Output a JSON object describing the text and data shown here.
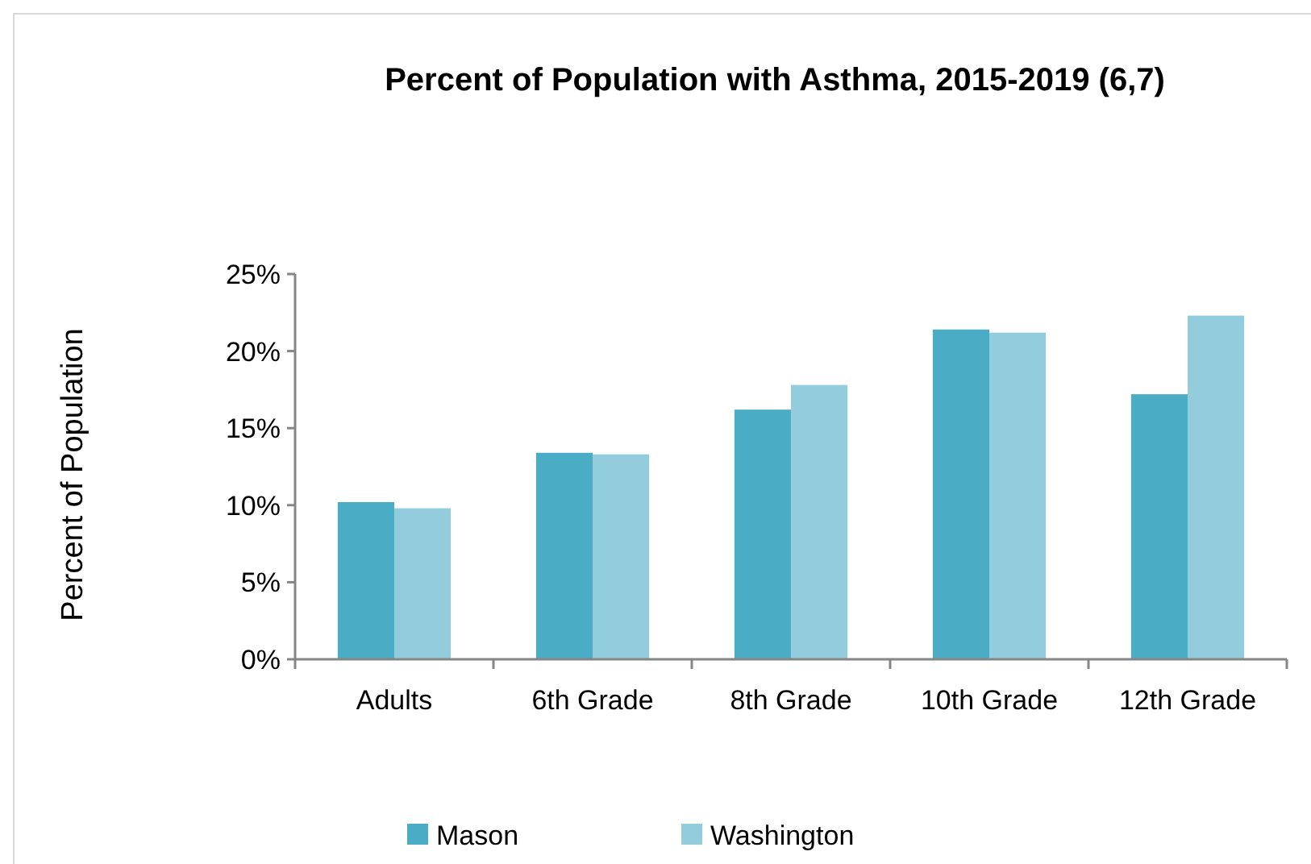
{
  "chart_data": {
    "type": "bar",
    "title": "Percent of Population with Asthma, 2015-2019 (6,7)",
    "ylabel": "Percent of Population",
    "categories": [
      "Adults",
      "6th Grade",
      "8th Grade",
      "10th Grade",
      "12th Grade"
    ],
    "series": [
      {
        "name": "Mason",
        "color": "#4bacc6",
        "values": [
          10.2,
          13.4,
          16.2,
          21.4,
          17.2
        ]
      },
      {
        "name": "Washington",
        "color": "#93cddd",
        "values": [
          9.8,
          13.3,
          17.8,
          21.2,
          22.3
        ]
      }
    ],
    "ylim": [
      0,
      25
    ],
    "yticks": [
      {
        "value": 0,
        "label": "0%"
      },
      {
        "value": 5,
        "label": "5%"
      },
      {
        "value": 10,
        "label": "10%"
      },
      {
        "value": 15,
        "label": "15%"
      },
      {
        "value": 20,
        "label": "20%"
      },
      {
        "value": 25,
        "label": "25%"
      }
    ],
    "grid": false,
    "legend": "bottom"
  }
}
